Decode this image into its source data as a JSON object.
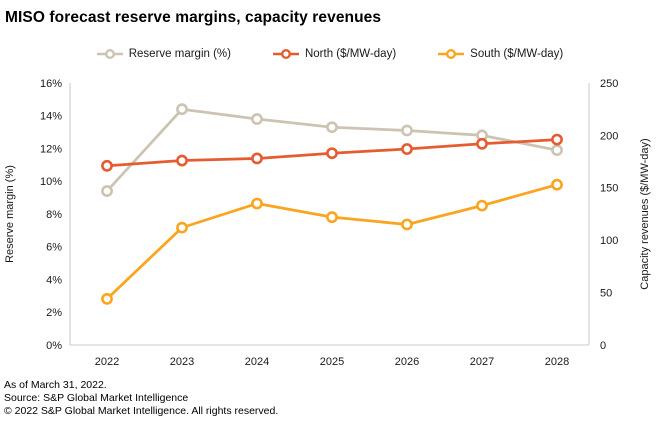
{
  "title": "MISO forecast reserve margins, capacity revenues",
  "chart_data": {
    "type": "line",
    "x": [
      "2022",
      "2023",
      "2024",
      "2025",
      "2026",
      "2027",
      "2028"
    ],
    "series": [
      {
        "name": "Reserve margin (%)",
        "axis": "left",
        "color": "#cdc3b3",
        "values": [
          9.4,
          14.4,
          13.8,
          13.3,
          13.1,
          12.8,
          11.9
        ]
      },
      {
        "name": "North ($/MW-day)",
        "axis": "right",
        "color": "#e65c31",
        "values": [
          171,
          176,
          178,
          183,
          187,
          192,
          196
        ]
      },
      {
        "name": "South ($/MW-day)",
        "axis": "right",
        "color": "#f9a51f",
        "values": [
          44,
          112,
          135,
          122,
          115,
          133,
          153
        ]
      }
    ],
    "left_axis": {
      "label": "Reserve margin (%)",
      "min": 0,
      "max": 16,
      "step": 2,
      "suffix": "%"
    },
    "right_axis": {
      "label": "Capacity revenues ($/MW-day)",
      "min": 0,
      "max": 250,
      "step": 50
    },
    "grid": false,
    "legend_position": "top",
    "marker": "open-circle",
    "axis_line_color": "#c9c9c9"
  },
  "footer": {
    "line1": "As of March 31, 2022.",
    "line2": "Source: S&P Global Market Intelligence",
    "line3": "© 2022 S&P Global Market Intelligence. All rights reserved."
  }
}
